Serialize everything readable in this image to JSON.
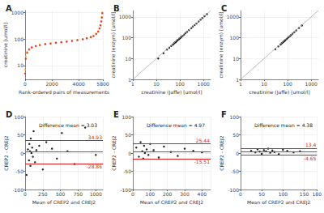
{
  "chart_data": [
    {
      "type": "scatter",
      "title": "A",
      "x_label": "Rank-ordered pairs of measurements",
      "y_label": "creatinine [umol/l]",
      "x": [
        0,
        50,
        150,
        300,
        500,
        800,
        1100,
        1500,
        1900,
        2300,
        2700,
        3100,
        3500,
        3900,
        4300,
        4600,
        4900,
        5100,
        5300,
        5450,
        5550,
        5620,
        5680,
        5720,
        5760
      ],
      "series": [
        {
          "color": "#f2b807",
          "values": [
            7,
            22,
            33,
            42,
            50,
            56,
            61,
            66,
            70,
            74,
            78,
            82,
            87,
            93,
            100,
            110,
            122,
            135,
            160,
            200,
            260,
            340,
            480,
            680,
            1000
          ]
        },
        {
          "color": "#d7263d",
          "values": [
            5,
            18,
            30,
            40,
            48,
            54,
            59,
            64,
            68,
            72,
            76,
            80,
            85,
            91,
            98,
            107,
            118,
            130,
            155,
            190,
            250,
            330,
            460,
            650,
            950
          ]
        }
      ],
      "log": "y",
      "xlim": [
        0,
        5800
      ],
      "ylim": [
        3,
        1200
      ],
      "xticks": [
        0,
        2000,
        4000
      ],
      "yticks": [
        10,
        100,
        1000
      ],
      "grid": true
    },
    {
      "type": "scatter",
      "title": "B",
      "x_label": "creatinine (Jaffe) [umol/l]",
      "y_label": "creatinine (enzym) [umol/l]",
      "x": [
        12,
        20,
        28,
        35,
        42,
        50,
        55,
        60,
        65,
        70,
        75,
        80,
        88,
        95,
        105,
        115,
        130,
        150,
        170,
        200,
        240,
        300,
        350,
        420,
        500,
        620,
        750,
        900,
        1100,
        1400
      ],
      "values": [
        10,
        18,
        27,
        33,
        40,
        46,
        52,
        58,
        60,
        66,
        72,
        78,
        82,
        90,
        98,
        110,
        122,
        140,
        165,
        190,
        230,
        285,
        340,
        400,
        480,
        600,
        730,
        880,
        1080,
        1350
      ],
      "color": "#000000",
      "log": true,
      "xlim": [
        1,
        2000
      ],
      "ylim": [
        1,
        2000
      ],
      "xticks": [
        1,
        10,
        100,
        1000
      ],
      "yticks": [
        1,
        10,
        100,
        1000
      ],
      "grid": true
    },
    {
      "type": "scatter",
      "title": "C",
      "x_label": "creatinine (Jaffe) [umol/l]",
      "y_label": "creatinine (enzym) [umol/l]",
      "x": [
        30,
        40,
        50,
        55,
        60,
        65,
        70,
        75,
        80,
        90,
        100,
        110,
        125,
        140,
        160,
        190,
        230,
        300,
        400
      ],
      "values": [
        28,
        38,
        47,
        53,
        57,
        62,
        67,
        72,
        77,
        86,
        96,
        106,
        120,
        135,
        155,
        183,
        222,
        290,
        385
      ],
      "color": "#000000",
      "log": true,
      "xlim": [
        1,
        2000
      ],
      "ylim": [
        1,
        2000
      ],
      "xticks": [
        1,
        10,
        100,
        1000
      ],
      "yticks": [
        1,
        10,
        100,
        1000
      ],
      "grid": true
    },
    {
      "type": "scatter",
      "title": "D",
      "x_label": "Mean of CREP2 and CREJ2",
      "y_label": "CREP2 - CREJ2",
      "x": [
        20,
        40,
        55,
        60,
        70,
        75,
        80,
        90,
        100,
        110,
        120,
        140,
        160,
        200,
        250,
        300,
        380,
        450,
        520,
        600,
        700,
        850,
        1000
      ],
      "values": [
        -60,
        10,
        -20,
        25,
        5,
        -35,
        40,
        0,
        15,
        -10,
        60,
        -25,
        8,
        20,
        -45,
        30,
        12,
        -15,
        55,
        5,
        -30,
        70,
        -5
      ],
      "color": "#000000",
      "annotation": "Difference mean = 3.03",
      "mean_difference": 3.03,
      "limits": [
        34.93,
        -28.86
      ],
      "xlim": [
        0,
        1100
      ],
      "ylim": [
        -100,
        100
      ],
      "xticks": [
        0,
        250,
        500,
        750,
        1000
      ],
      "yticks": [
        -100,
        -50,
        0,
        50,
        100
      ],
      "grid": true
    },
    {
      "type": "scatter",
      "title": "E",
      "x_label": "Mean of CREP2 and CREJ2",
      "y_label": "CREP2 - CREJ2",
      "x": [
        20,
        35,
        45,
        55,
        60,
        65,
        70,
        80,
        90,
        100,
        120,
        150,
        180,
        220,
        260,
        300,
        350,
        400
      ],
      "values": [
        15,
        -10,
        30,
        5,
        -15,
        20,
        0,
        10,
        -5,
        25,
        8,
        -12,
        18,
        3,
        -8,
        12,
        6,
        2
      ],
      "color": "#000000",
      "annotation": "Difference mean = 4.97",
      "mean_difference": 4.97,
      "limits": [
        25.44,
        -15.51
      ],
      "xlim": [
        0,
        450
      ],
      "ylim": [
        -100,
        100
      ],
      "xticks": [
        0,
        100,
        200,
        300,
        400
      ],
      "yticks": [
        -100,
        -50,
        0,
        50,
        100
      ],
      "grid": true
    },
    {
      "type": "scatter",
      "title": "F",
      "x_label": "Mean of CREP2 and CREJ2",
      "y_label": "CREP2 - CREJ2",
      "x": [
        25,
        35,
        40,
        45,
        50,
        55,
        60,
        65,
        70,
        75,
        80,
        90,
        100,
        110,
        125,
        140
      ],
      "values": [
        6,
        2,
        10,
        4,
        -2,
        8,
        5,
        12,
        1,
        7,
        3,
        -3,
        9,
        6,
        2,
        5
      ],
      "color": "#000000",
      "annotation": "Difference mean = 4.38",
      "mean_difference": 4.38,
      "limits": [
        13.4,
        -4.65
      ],
      "xlim": [
        0,
        180
      ],
      "ylim": [
        -100,
        100
      ],
      "xticks": [
        0,
        50,
        100,
        150
      ],
      "yticks": [
        -100,
        -50,
        0,
        50,
        100
      ],
      "grid": true
    }
  ]
}
